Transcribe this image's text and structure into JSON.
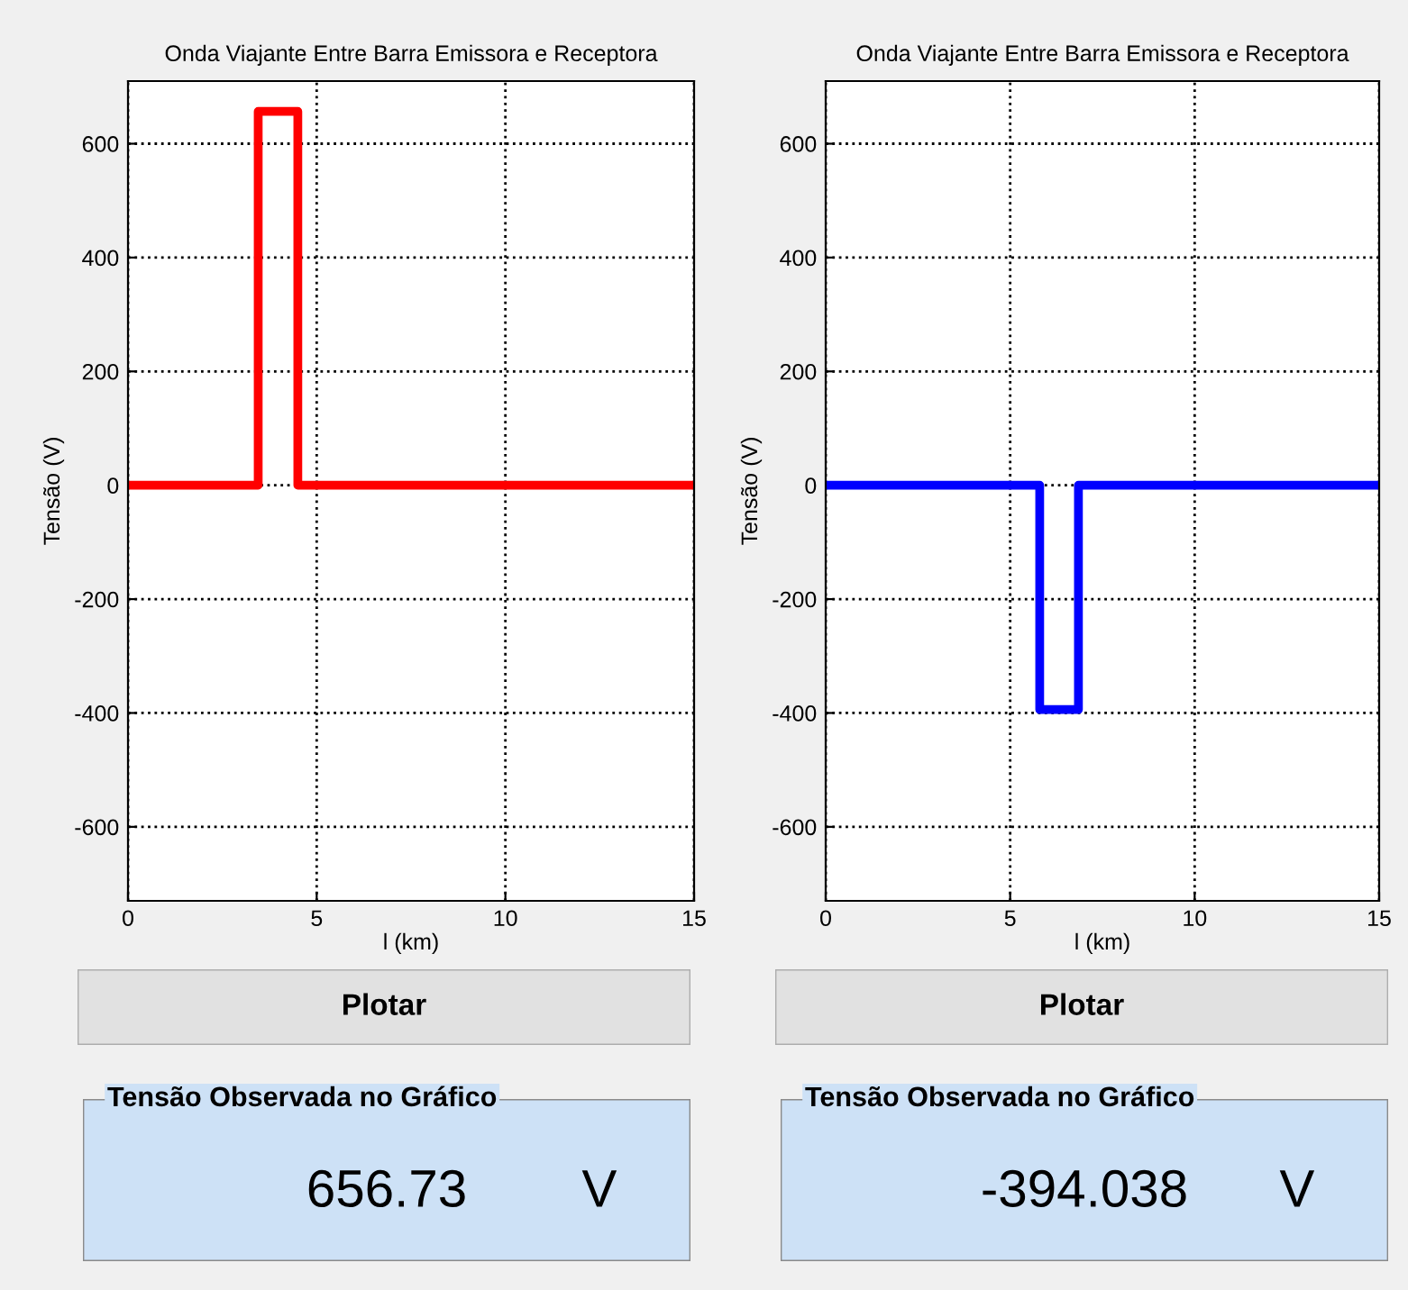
{
  "chart_data": [
    {
      "type": "line",
      "title": "Onda Viajante Entre Barra Emissora e Receptora",
      "xlabel": "l (km)",
      "ylabel": "Tensão (V)",
      "series": [
        {
          "color": "#ff0000",
          "x": [
            0,
            3.45,
            3.45,
            4.5,
            4.5,
            15
          ],
          "values": [
            0,
            0,
            656.73,
            656.73,
            0,
            0
          ]
        }
      ],
      "xlim": [
        0,
        15
      ],
      "ylim": [
        -730,
        710
      ],
      "xticks": [
        0,
        5,
        10,
        15
      ],
      "yticks": [
        -600,
        -400,
        -200,
        0,
        200,
        400,
        600
      ],
      "grid": true,
      "marker": "none",
      "line_style": "solid",
      "annotations": [
        "Plotar",
        "Tensão Observada no Gráfico",
        "656.73",
        "V"
      ]
    },
    {
      "type": "line",
      "title": "Onda Viajante Entre Barra Emissora e Receptora",
      "xlabel": "l (km)",
      "ylabel": "Tensão (V)",
      "series": [
        {
          "color": "#0000ff",
          "x": [
            0,
            5.8,
            5.8,
            6.85,
            6.85,
            15
          ],
          "values": [
            0,
            0,
            -394.038,
            -394.038,
            0,
            0
          ]
        }
      ],
      "xlim": [
        0,
        15
      ],
      "ylim": [
        -730,
        710
      ],
      "xticks": [
        0,
        5,
        10,
        15
      ],
      "yticks": [
        -600,
        -400,
        -200,
        0,
        200,
        400,
        600
      ],
      "grid": true,
      "marker": "none",
      "line_style": "solid",
      "annotations": [
        "Plotar",
        "Tensão Observada no Gráfico",
        "-394.038",
        "V"
      ]
    }
  ]
}
